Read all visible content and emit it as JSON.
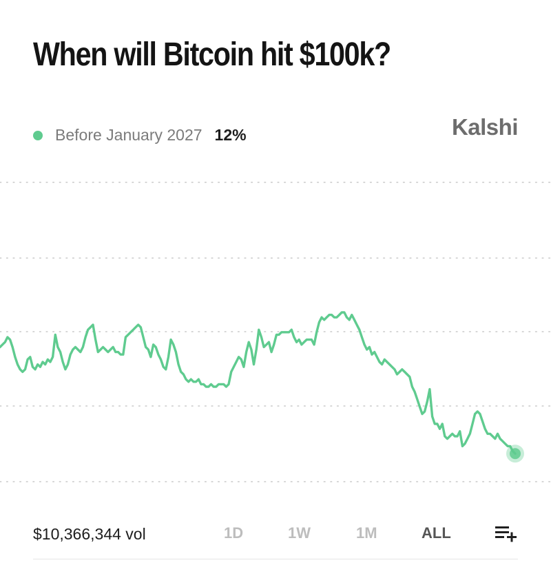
{
  "market": {
    "title": "When will Bitcoin hit $100k?",
    "outcome_label": "Before January 2027",
    "outcome_pct": "12%",
    "brand": "Kalshi",
    "accent_color": "#5fcb8f"
  },
  "chart_data": {
    "type": "line",
    "grid": "horizontal-dotted",
    "series": [
      {
        "values": [
          26,
          27,
          28,
          30,
          29,
          26,
          22,
          19,
          17,
          16,
          17,
          21,
          22,
          18,
          17,
          19,
          18,
          20,
          19,
          21,
          20,
          22,
          31,
          26,
          24,
          20,
          17,
          19,
          23,
          25,
          26,
          25,
          24,
          26,
          30,
          33,
          34,
          35,
          29,
          24,
          25,
          26,
          25,
          24,
          25,
          26,
          24,
          24,
          23,
          23,
          30,
          31,
          32,
          33,
          34,
          35,
          34,
          30,
          26,
          25,
          22,
          27,
          26,
          23,
          21,
          18,
          17,
          22,
          29,
          27,
          24,
          19,
          16,
          15,
          13,
          12,
          13,
          12,
          12,
          13,
          11,
          11,
          10,
          10,
          11,
          10,
          10,
          11,
          11,
          11,
          10,
          11,
          16,
          18,
          20,
          22,
          21,
          18,
          24,
          28,
          25,
          19,
          25,
          33,
          30,
          26,
          27,
          28,
          24,
          27,
          31,
          31,
          32,
          32,
          32,
          32,
          33,
          30,
          28,
          29,
          27,
          28,
          29,
          29,
          29,
          27,
          32,
          36,
          38,
          37,
          38,
          39,
          39,
          38,
          38,
          39,
          40,
          40,
          38,
          37,
          39,
          37,
          35,
          33,
          30,
          27,
          25,
          26,
          23,
          24,
          22,
          20,
          19,
          21,
          20,
          19,
          18,
          17,
          15,
          16,
          17,
          16,
          15,
          14,
          10,
          8,
          5,
          2,
          -1,
          0,
          4,
          9,
          -2,
          -5,
          -5,
          -7,
          -5,
          -10,
          -11,
          -10,
          -9,
          -10,
          -10,
          -8,
          -14,
          -13,
          -11,
          -9,
          -5,
          -1,
          0,
          -1,
          -4,
          -7,
          -9,
          -9,
          -10,
          -11,
          -9,
          -11,
          -12,
          -13,
          -14,
          -14,
          -16,
          -17
        ]
      }
    ]
  },
  "footer": {
    "volume": "$10,366,344 vol",
    "ranges": [
      {
        "label": "1D",
        "active": false
      },
      {
        "label": "1W",
        "active": false
      },
      {
        "label": "1M",
        "active": false
      },
      {
        "label": "ALL",
        "active": true
      }
    ],
    "list_icon": "playlist-add-icon"
  }
}
